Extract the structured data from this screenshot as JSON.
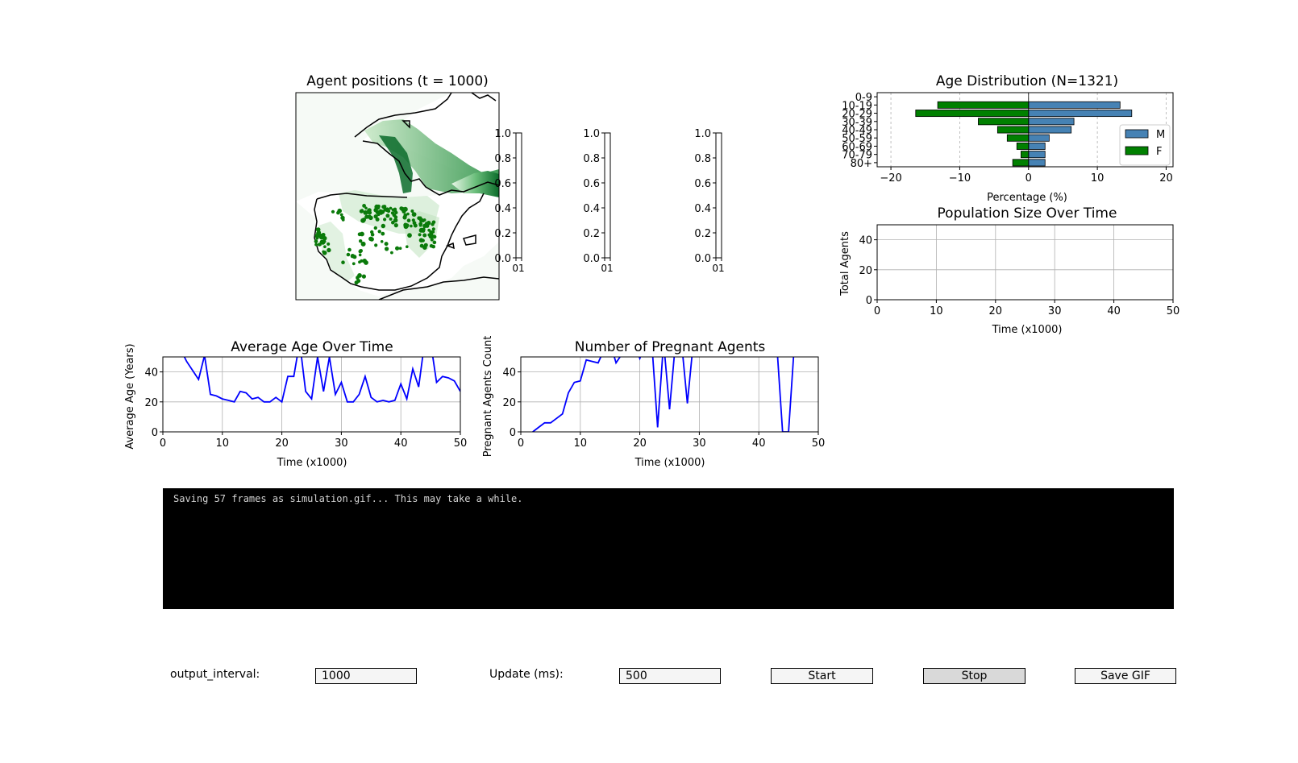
{
  "map": {
    "title": "Agent positions (t = 1000)",
    "colors": {
      "water_fill": "#f4f9f4",
      "agent": "#0a7a0a",
      "coast": "#000000"
    }
  },
  "empty_axes": {
    "ticks": [
      "0.0",
      "0.2",
      "0.4",
      "0.6",
      "0.8",
      "1.0"
    ],
    "xtick": "01"
  },
  "age_dist": {
    "title": "Age Distribution (N=1321)",
    "xlabel": "Percentage (%)",
    "legend": [
      "M",
      "F"
    ],
    "colors": {
      "M": "#4682b4",
      "F": "#008000"
    }
  },
  "population": {
    "title": "Population Size Over Time",
    "xlabel": "Time (x1000)",
    "ylabel": "Total Agents"
  },
  "avg_age": {
    "title": "Average Age Over Time",
    "xlabel": "Time (x1000)",
    "ylabel": "Average Age (Years)"
  },
  "pregnant": {
    "title": "Number of Pregnant Agents",
    "xlabel": "Time (x1000)",
    "ylabel": "Pregnant Agents Count"
  },
  "chart_data": [
    {
      "type": "bar",
      "title": "Age Distribution (N=1321)",
      "xlabel": "Percentage (%)",
      "categories": [
        "0-9",
        "10-19",
        "20-29",
        "30-39",
        "40-49",
        "50-59",
        "60-69",
        "70-79",
        "80+"
      ],
      "series": [
        {
          "name": "M",
          "values": [
            0,
            13.3,
            15.0,
            6.6,
            6.2,
            3.0,
            2.4,
            2.4,
            2.4
          ]
        },
        {
          "name": "F",
          "values": [
            0,
            -13.2,
            -16.4,
            -7.3,
            -4.5,
            -3.1,
            -1.7,
            -1.1,
            -2.3
          ]
        }
      ],
      "xlim": [
        -22,
        21
      ],
      "xticks": [
        -20,
        -10,
        0,
        10,
        20
      ],
      "grid": true,
      "legend_position": "center-right"
    },
    {
      "type": "line",
      "title": "Population Size Over Time",
      "xlabel": "Time (x1000)",
      "ylabel": "Total Agents",
      "xlim": [
        0,
        50
      ],
      "ylim": [
        0,
        50
      ],
      "xticks": [
        0,
        10,
        20,
        30,
        40,
        50
      ],
      "yticks": [
        0,
        20,
        40
      ],
      "series": [],
      "grid": true
    },
    {
      "type": "line",
      "title": "Average Age Over Time",
      "xlabel": "Time (x1000)",
      "ylabel": "Average Age (Years)",
      "xlim": [
        0,
        50
      ],
      "ylim": [
        0,
        50
      ],
      "xticks": [
        0,
        10,
        20,
        30,
        40,
        50
      ],
      "yticks": [
        0,
        20,
        40
      ],
      "grid": true,
      "series": [
        {
          "color": "#0000ff",
          "x": [
            2,
            3,
            4,
            5,
            6,
            7,
            8,
            9,
            10,
            11,
            12,
            13,
            14,
            15,
            16,
            17,
            18,
            19,
            20,
            21,
            22,
            23,
            24,
            25,
            26,
            27,
            28,
            29,
            30,
            31,
            32,
            33,
            34,
            35,
            36,
            37,
            38,
            39,
            40,
            41,
            42,
            43,
            44,
            45,
            46,
            47,
            48,
            49,
            50
          ],
          "y": [
            60,
            55,
            47,
            41,
            35,
            51,
            25,
            24,
            22,
            21,
            20,
            27,
            26,
            22,
            23,
            20,
            20,
            23,
            20,
            37,
            37,
            60,
            27,
            22,
            50,
            27,
            50,
            25,
            33,
            20,
            20,
            25,
            37,
            23,
            20,
            21,
            20,
            21,
            32,
            22,
            42,
            30,
            60,
            60,
            33,
            37,
            36,
            34,
            27
          ]
        }
      ]
    },
    {
      "type": "line",
      "title": "Number of Pregnant Agents",
      "xlabel": "Time (x1000)",
      "ylabel": "Pregnant Agents Count",
      "xlim": [
        0,
        50
      ],
      "ylim": [
        0,
        50
      ],
      "xticks": [
        0,
        10,
        20,
        30,
        40,
        50
      ],
      "yticks": [
        0,
        20,
        40
      ],
      "grid": true,
      "series": [
        {
          "color": "#0000ff",
          "x": [
            2,
            3,
            4,
            5,
            6,
            7,
            8,
            9,
            10,
            11,
            12,
            13,
            14,
            15,
            16,
            17,
            18,
            19,
            20,
            21,
            22,
            23,
            24,
            25,
            26,
            27,
            28,
            29,
            30,
            31,
            32,
            33,
            34,
            35,
            36,
            37,
            38,
            39,
            40,
            41,
            42,
            43,
            44,
            45,
            46
          ],
          "y": [
            0,
            3,
            6,
            6,
            9,
            12,
            26,
            33,
            34,
            48,
            47,
            46,
            55,
            60,
            46,
            52,
            60,
            60,
            49,
            60,
            60,
            3,
            60,
            15,
            60,
            60,
            19,
            60,
            60,
            60,
            60,
            60,
            60,
            60,
            60,
            60,
            60,
            60,
            60,
            60,
            60,
            60,
            0,
            0,
            60
          ]
        }
      ]
    }
  ],
  "console": {
    "text": "Saving 57 frames as simulation.gif... This may take a while."
  },
  "controls": {
    "output_interval_label": "output_interval:",
    "output_interval_value": "1000",
    "update_label": "Update (ms):",
    "update_value": "500",
    "start": "Start",
    "stop": "Stop",
    "save_gif": "Save GIF"
  }
}
